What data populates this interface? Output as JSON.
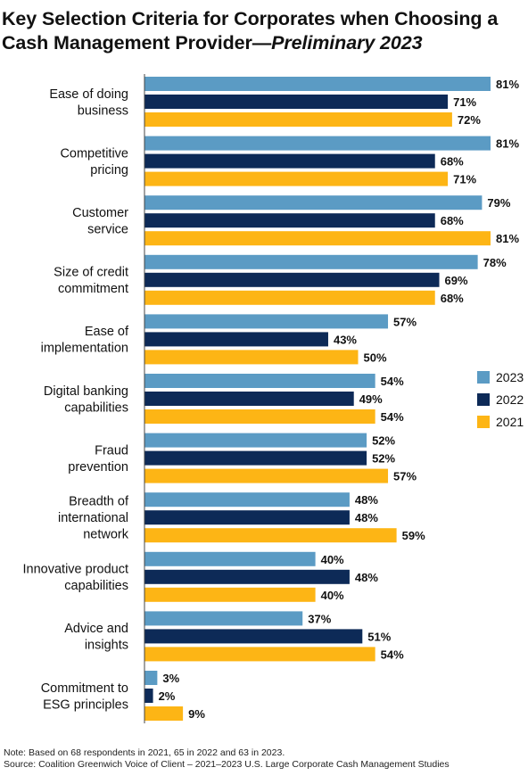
{
  "title": {
    "main": "Key Selection Criteria for Corporates when Choosing a Cash Management Provider—",
    "italic": "Preliminary 2023"
  },
  "colors": {
    "2023": "#5b9bc4",
    "2022": "#0d2a57",
    "2021": "#fdb515",
    "axis": "#444444"
  },
  "chart_data": {
    "type": "bar",
    "orientation": "horizontal",
    "categories": [
      [
        "Ease of doing",
        "business"
      ],
      [
        "Competitive",
        "pricing"
      ],
      [
        "Customer",
        "service"
      ],
      [
        "Size of credit",
        "commitment"
      ],
      [
        "Ease of",
        "implementation"
      ],
      [
        "Digital banking",
        "capabilities"
      ],
      [
        "Fraud",
        "prevention"
      ],
      [
        "Breadth of",
        "international",
        "network"
      ],
      [
        "Innovative product",
        "capabilities"
      ],
      [
        "Advice and",
        "insights"
      ],
      [
        "Commitment to",
        "ESG principles"
      ]
    ],
    "series": [
      {
        "name": "2023",
        "values": [
          81,
          81,
          79,
          78,
          57,
          54,
          52,
          48,
          40,
          37,
          3
        ]
      },
      {
        "name": "2022",
        "values": [
          71,
          68,
          68,
          69,
          43,
          49,
          52,
          48,
          48,
          51,
          2
        ]
      },
      {
        "name": "2021",
        "values": [
          72,
          71,
          81,
          68,
          50,
          54,
          57,
          59,
          40,
          54,
          9
        ]
      }
    ],
    "value_suffix": "%",
    "xlim": [
      0,
      100
    ],
    "legend_position": "right"
  },
  "notes": {
    "note": "Note: Based on 68 respondents in 2021, 65 in 2022 and 63 in 2023.",
    "source": "Source: Coalition Greenwich Voice of Client – 2021–2023 U.S. Large Corporate Cash Management Studies"
  }
}
